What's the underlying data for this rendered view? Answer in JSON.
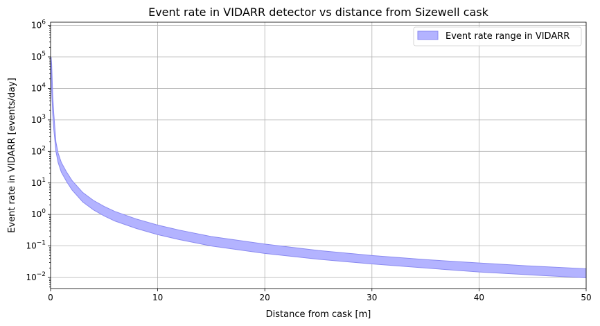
{
  "chart_data": {
    "type": "area",
    "title": "Event rate in VIDARR detector vs distance from Sizewell cask",
    "xlabel": "Distance from cask [m]",
    "ylabel": "Event rate in VIDARR [events/day]",
    "xlim": [
      0,
      50
    ],
    "ylim_log10": [
      -2.35,
      6.1
    ],
    "yscale": "log",
    "grid": true,
    "legend_position": "top-right",
    "x_ticks": [
      0,
      10,
      20,
      30,
      40,
      50
    ],
    "x_tick_labels": [
      "0",
      "10",
      "20",
      "30",
      "40",
      "50"
    ],
    "y_ticks_log10": [
      -2,
      -1,
      0,
      1,
      2,
      3,
      4,
      5,
      6
    ],
    "y_tick_labels": [
      {
        "base": "10",
        "exp": "−2"
      },
      {
        "base": "10",
        "exp": "−1"
      },
      {
        "base": "10",
        "exp": "0"
      },
      {
        "base": "10",
        "exp": "1"
      },
      {
        "base": "10",
        "exp": "2"
      },
      {
        "base": "10",
        "exp": "3"
      },
      {
        "base": "10",
        "exp": "4"
      },
      {
        "base": "10",
        "exp": "5"
      },
      {
        "base": "10",
        "exp": "6"
      }
    ],
    "series": [
      {
        "name": "Event rate range in VIDARR",
        "fill_color": "#b3b3ff",
        "edge_color": "#8a8af0",
        "x": [
          0.05,
          0.1,
          0.2,
          0.3,
          0.5,
          0.7,
          1,
          1.5,
          2,
          3,
          4,
          5,
          6,
          8,
          10,
          12,
          15,
          20,
          25,
          30,
          35,
          40,
          45,
          50
        ],
        "upper": [
          100000,
          60000,
          6000,
          1600,
          200,
          90,
          45,
          22,
          12,
          5,
          2.8,
          1.8,
          1.25,
          0.72,
          0.46,
          0.32,
          0.2,
          0.115,
          0.072,
          0.05,
          0.037,
          0.029,
          0.023,
          0.019
        ],
        "lower": [
          40000,
          9000,
          1500,
          500,
          100,
          45,
          22,
          11,
          6,
          2.5,
          1.4,
          0.9,
          0.62,
          0.36,
          0.23,
          0.16,
          0.1,
          0.058,
          0.038,
          0.027,
          0.02,
          0.015,
          0.012,
          0.0098
        ]
      }
    ]
  }
}
